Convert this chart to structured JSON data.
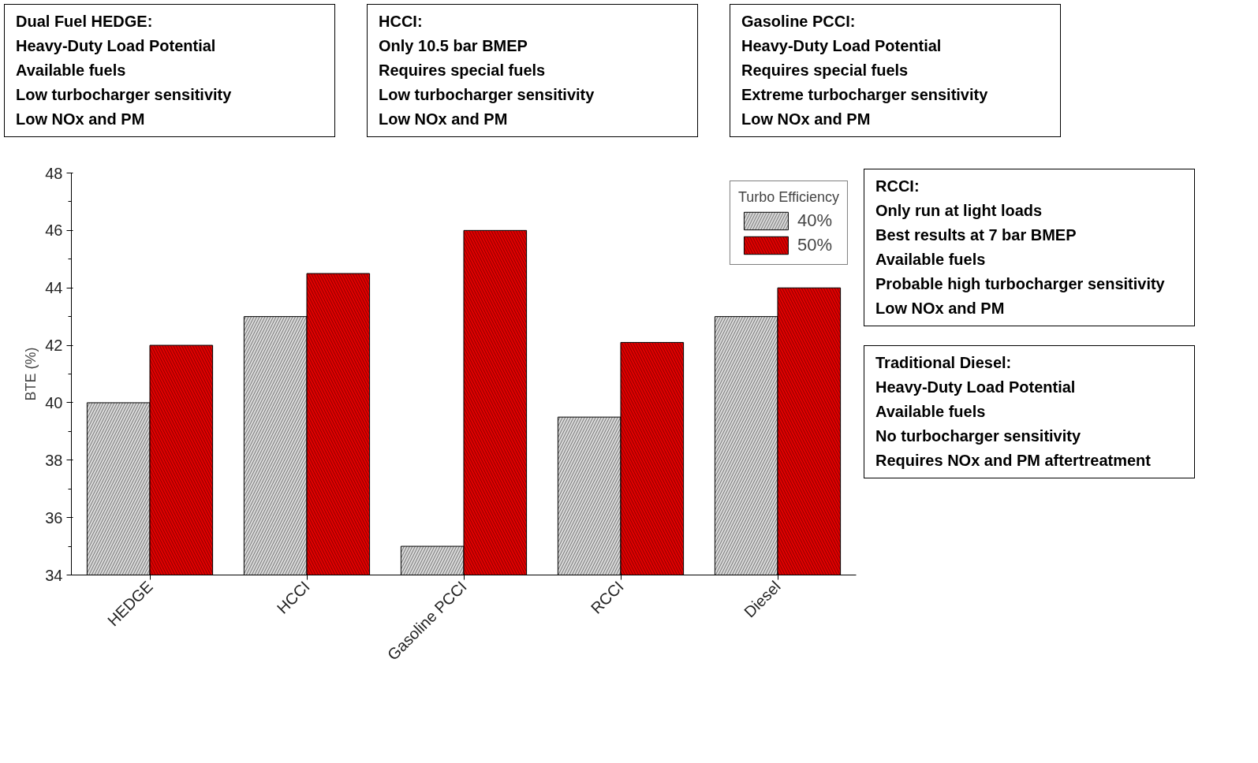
{
  "chart_data": {
    "type": "bar",
    "ylabel": "BTE (%)",
    "legend_title": "Turbo Efficiency",
    "categories": [
      "HEDGE",
      "HCCI",
      "Gasoline PCCI",
      "RCCI",
      "Diesel"
    ],
    "series": [
      {
        "name": "40%",
        "color": "#d9d9d9",
        "values": [
          40,
          43,
          35,
          39.5,
          43
        ]
      },
      {
        "name": "50%",
        "color": "#e00000",
        "values": [
          42,
          44.5,
          46,
          42.1,
          44
        ]
      }
    ],
    "ylim": [
      34,
      48
    ],
    "yticks": [
      34,
      36,
      38,
      40,
      42,
      44,
      46,
      48
    ],
    "grid": false,
    "legend": "top right",
    "annotations": [
      "Dual Fuel HEDGE:\nHeavy-Duty Load Potential\nAvailable fuels\nLow turbocharger sensitivity\nLow NOx and PM",
      "HCCI:\nOnly 10.5 bar BMEP\nRequires special fuels\nLow turbocharger sensitivity\nLow NOx and PM",
      "Gasoline PCCI:\nHeavy-Duty Load Potential\nRequires special fuels\nExtreme turbocharger sensitivity\nLow NOx and PM",
      "RCCI:\nOnly run at light loads\nBest results at 7 bar BMEP\nAvailable fuels\nProbable high turbocharger sensitivity\nLow NOx and PM",
      "Traditional Diesel:\nHeavy-Duty Load Potential\nAvailable fuels\nNo turbocharger sensitivity\nRequires NOx and PM aftertreatment"
    ]
  }
}
